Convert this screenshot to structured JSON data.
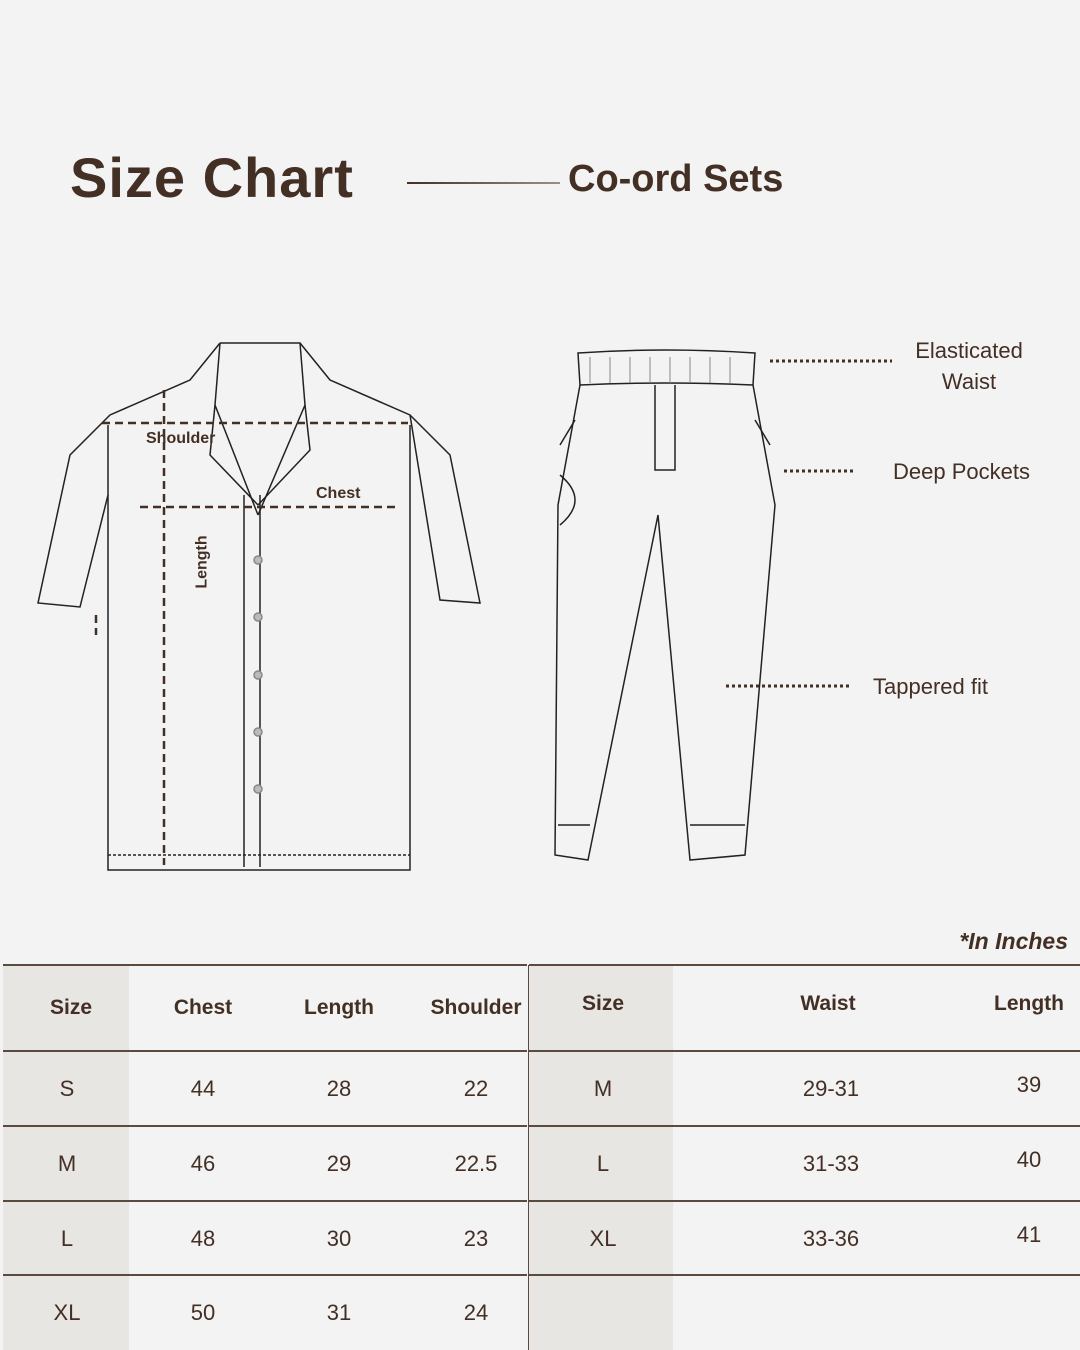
{
  "header": {
    "title": "Size Chart",
    "subtitle": "Co-ord Sets"
  },
  "shirt_labels": {
    "shoulder": "Shoulder",
    "chest": "Chest",
    "length": "Length"
  },
  "pant_labels": {
    "waist": "Elasticated\nWaist",
    "waist_line1": "Elasticated",
    "waist_line2": "Waist",
    "pockets": "Deep Pockets",
    "fit": "Tappered fit"
  },
  "units_note": "*In Inches",
  "colors": {
    "text": "#432f24",
    "background": "#f3f3f3",
    "shaded_column": "#e8e6e3"
  },
  "shirt_table": {
    "headers": [
      "Size",
      "Chest",
      "Length",
      "Shoulder"
    ],
    "rows": [
      [
        "S",
        "44",
        "28",
        "22"
      ],
      [
        "M",
        "46",
        "29",
        "22.5"
      ],
      [
        "L",
        "48",
        "30",
        "23"
      ],
      [
        "XL",
        "50",
        "31",
        "24"
      ]
    ]
  },
  "pant_table": {
    "headers": [
      "Size",
      "Waist",
      "Length"
    ],
    "rows": [
      [
        "M",
        "29-31",
        "39"
      ],
      [
        "L",
        "31-33",
        "40"
      ],
      [
        "XL",
        "33-36",
        "41"
      ]
    ]
  }
}
